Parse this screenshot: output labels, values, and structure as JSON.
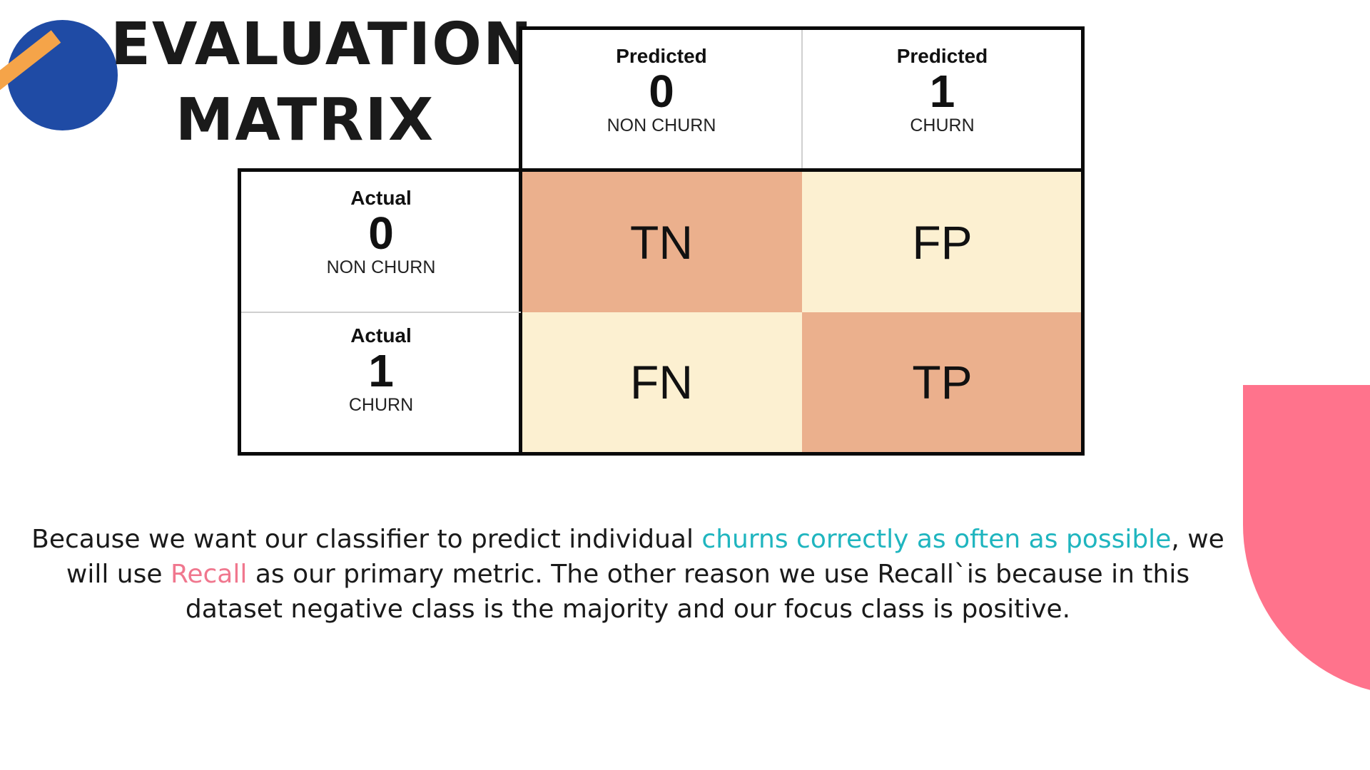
{
  "title": {
    "line1": "EVALUATION",
    "line2": "MATRIX"
  },
  "matrix": {
    "columns": [
      {
        "label": "Predicted",
        "value": "0",
        "sub": "NON CHURN"
      },
      {
        "label": "Predicted",
        "value": "1",
        "sub": "CHURN"
      }
    ],
    "rows": [
      {
        "label": "Actual",
        "value": "0",
        "sub": "NON CHURN"
      },
      {
        "label": "Actual",
        "value": "1",
        "sub": "CHURN"
      }
    ],
    "cells": [
      [
        "TN",
        "FP"
      ],
      [
        "FN",
        "TP"
      ]
    ]
  },
  "paragraph": {
    "p1": "Because we want our classifier to predict individual ",
    "p2": "churns correctly as often as possible",
    "p3": ", we will use ",
    "p4": "Recall",
    "p5": " as our primary metric. The other reason we use Recall`is because in this dataset negative class is the majority and our focus class is positive."
  },
  "colors": {
    "blue_circle": "#1f4ba5",
    "orange_stick": "#f5a449",
    "pink_shape": "#ff738c",
    "peach_cell": "#ebb08d",
    "cream_cell": "#fcf0d1",
    "teal_text": "#1fb5bf",
    "pink_text": "#f0778e"
  }
}
